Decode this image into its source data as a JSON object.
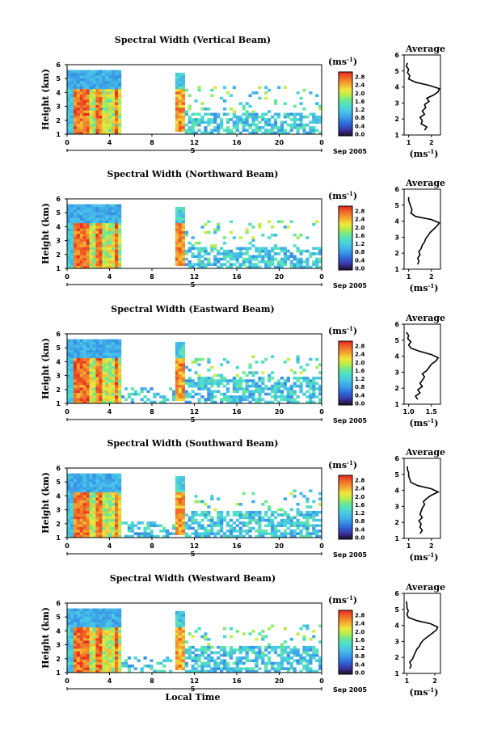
{
  "chart_data": [
    {
      "type": "heatmap",
      "title": "Spectral Width (Vertical Beam)",
      "ylabel": "Height (km)",
      "xticks": [
        "0",
        "4",
        "8",
        "12",
        "16",
        "20",
        "0"
      ],
      "day_label": "5",
      "date_label": "Sep 2005",
      "colorbar_unit": "(ms",
      "colorbar_exp": "-1",
      "colorbar_unit_end": ")",
      "colorbar_ticks": [
        "2.8",
        "2.4",
        "2.0",
        "1.6",
        "1.2",
        "0.8",
        "0.4",
        "0.0"
      ],
      "colorbar_range": [
        0.0,
        2.8
      ],
      "xlim": [
        0,
        24
      ],
      "ylim": [
        1,
        6
      ],
      "yticks": [
        "1",
        "2",
        "3",
        "4",
        "5",
        "6"
      ],
      "profile": {
        "title": "Average",
        "xlabel": "(ms",
        "xlabel_exp": "-1",
        "xlabel_end": ")",
        "xticks": [
          "1",
          "2"
        ],
        "xlim": [
          0.8,
          2.4
        ],
        "height": [
          1.3,
          1.5,
          1.7,
          1.9,
          2.1,
          2.3,
          2.5,
          2.7,
          2.9,
          3.1,
          3.3,
          3.5,
          3.7,
          3.9,
          4.1,
          4.3,
          4.5,
          4.7,
          4.9,
          5.1,
          5.3,
          5.5
        ],
        "width": [
          1.7,
          1.8,
          1.55,
          1.6,
          1.5,
          1.7,
          1.6,
          1.75,
          1.7,
          1.9,
          1.8,
          2.1,
          2.3,
          2.35,
          1.9,
          1.3,
          1.0,
          1.05,
          0.95,
          1.0,
          0.9,
          0.95
        ]
      }
    },
    {
      "type": "heatmap",
      "title": "Spectral Width (Northward Beam)",
      "ylabel": "Height (km)",
      "xticks": [
        "0",
        "4",
        "8",
        "12",
        "16",
        "20",
        "0"
      ],
      "day_label": "5",
      "date_label": "Sep 2005",
      "colorbar_unit": "(ms",
      "colorbar_exp": "-1",
      "colorbar_unit_end": ")",
      "colorbar_ticks": [
        "2.8",
        "2.4",
        "2.0",
        "1.6",
        "1.2",
        "0.8",
        "0.4",
        "0.0"
      ],
      "colorbar_range": [
        0.0,
        2.8
      ],
      "xlim": [
        0,
        24
      ],
      "ylim": [
        1,
        6
      ],
      "yticks": [
        "1",
        "2",
        "3",
        "4",
        "5",
        "6"
      ],
      "profile": {
        "title": "Average",
        "xlabel": "(ms",
        "xlabel_exp": "-1",
        "xlabel_end": ")",
        "xticks": [
          "1",
          "2"
        ],
        "xlim": [
          0.8,
          2.4
        ],
        "height": [
          1.3,
          1.5,
          1.7,
          1.9,
          2.1,
          2.3,
          2.5,
          2.7,
          2.9,
          3.1,
          3.3,
          3.5,
          3.7,
          3.9,
          4.1,
          4.3,
          4.5,
          4.7,
          4.9,
          5.1,
          5.3,
          5.5
        ],
        "width": [
          1.4,
          1.45,
          1.4,
          1.5,
          1.45,
          1.55,
          1.6,
          1.7,
          1.75,
          1.85,
          1.95,
          2.1,
          2.25,
          2.35,
          2.0,
          1.3,
          1.1,
          1.15,
          1.1,
          1.05,
          1.0,
          1.0
        ]
      }
    },
    {
      "type": "heatmap",
      "title": "Spectral Width (Eastward Beam)",
      "ylabel": "Height (km)",
      "xticks": [
        "0",
        "4",
        "8",
        "12",
        "16",
        "20",
        "0"
      ],
      "day_label": "5",
      "date_label": "Sep 2005",
      "colorbar_unit": "(ms",
      "colorbar_exp": "-1",
      "colorbar_unit_end": ")",
      "colorbar_ticks": [
        "2.8",
        "2.4",
        "2.0",
        "1.6",
        "1.2",
        "0.8",
        "0.4",
        "0.0"
      ],
      "colorbar_range": [
        0.0,
        2.8
      ],
      "xlim": [
        0,
        24
      ],
      "ylim": [
        1,
        6
      ],
      "yticks": [
        "1",
        "2",
        "3",
        "4",
        "5",
        "6"
      ],
      "profile": {
        "title": "Average",
        "xlabel": "(ms",
        "xlabel_exp": "-1",
        "xlabel_end": ")",
        "xticks": [
          "1.0",
          "1.5"
        ],
        "xlim": [
          0.9,
          1.7
        ],
        "height": [
          1.3,
          1.5,
          1.7,
          1.9,
          2.1,
          2.3,
          2.5,
          2.7,
          2.9,
          3.1,
          3.3,
          3.5,
          3.7,
          3.9,
          4.1,
          4.3,
          4.5,
          4.7,
          4.9,
          5.1,
          5.3,
          5.5
        ],
        "width": [
          1.2,
          1.15,
          1.25,
          1.2,
          1.3,
          1.25,
          1.3,
          1.35,
          1.3,
          1.4,
          1.45,
          1.5,
          1.6,
          1.65,
          1.5,
          1.25,
          1.05,
          1.0,
          1.05,
          0.98,
          1.0,
          0.95
        ]
      }
    },
    {
      "type": "heatmap",
      "title": "Spectral Width (Southward Beam)",
      "ylabel": "Height (km)",
      "xticks": [
        "0",
        "4",
        "8",
        "12",
        "16",
        "20",
        "0"
      ],
      "day_label": "5",
      "date_label": "Sep 2005",
      "colorbar_unit": "(ms",
      "colorbar_exp": "-1",
      "colorbar_unit_end": ")",
      "colorbar_ticks": [
        "2.8",
        "2.4",
        "2.0",
        "1.6",
        "1.2",
        "0.8",
        "0.4",
        "0.0"
      ],
      "colorbar_range": [
        0.0,
        2.8
      ],
      "xlim": [
        0,
        24
      ],
      "ylim": [
        1,
        6
      ],
      "yticks": [
        "1",
        "2",
        "3",
        "4",
        "5",
        "6"
      ],
      "profile": {
        "title": "Average",
        "xlabel": "(ms",
        "xlabel_exp": "-1",
        "xlabel_end": ")",
        "xticks": [
          "1",
          "2"
        ],
        "xlim": [
          0.8,
          2.4
        ],
        "height": [
          1.3,
          1.5,
          1.7,
          1.9,
          2.1,
          2.3,
          2.5,
          2.7,
          2.9,
          3.1,
          3.3,
          3.5,
          3.7,
          3.9,
          4.1,
          4.3,
          4.5,
          4.7,
          4.9,
          5.1,
          5.3,
          5.5
        ],
        "width": [
          1.5,
          1.6,
          1.5,
          1.55,
          1.45,
          1.6,
          1.5,
          1.55,
          1.6,
          1.7,
          1.65,
          1.8,
          2.0,
          2.3,
          2.0,
          1.4,
          1.1,
          1.05,
          1.0,
          1.0,
          0.95,
          0.95
        ]
      }
    },
    {
      "type": "heatmap",
      "title": "Spectral Width (Westward Beam)",
      "ylabel": "Height (km)",
      "xlabel": "Local Time",
      "xticks": [
        "0",
        "4",
        "8",
        "12",
        "16",
        "20",
        "0"
      ],
      "day_label": "5",
      "date_label": "Sep 2005",
      "colorbar_unit": "(ms",
      "colorbar_exp": "-1",
      "colorbar_unit_end": ")",
      "colorbar_ticks": [
        "2.8",
        "2.4",
        "2.0",
        "1.6",
        "1.2",
        "0.8",
        "0.4",
        "0.0"
      ],
      "colorbar_range": [
        0.0,
        2.8
      ],
      "xlim": [
        0,
        24
      ],
      "ylim": [
        1,
        6
      ],
      "yticks": [
        "1",
        "2",
        "3",
        "4",
        "5",
        "6"
      ],
      "profile": {
        "title": "Average",
        "xlabel": "(ms",
        "xlabel_exp": "-1",
        "xlabel_end": ")",
        "xticks": [
          "1",
          "2"
        ],
        "xlim": [
          0.9,
          2.2
        ],
        "height": [
          1.3,
          1.5,
          1.7,
          1.9,
          2.1,
          2.3,
          2.5,
          2.7,
          2.9,
          3.1,
          3.3,
          3.5,
          3.7,
          3.9,
          4.1,
          4.3,
          4.5,
          4.7,
          4.9,
          5.1,
          5.3,
          5.5
        ],
        "width": [
          1.1,
          1.15,
          1.1,
          1.2,
          1.25,
          1.3,
          1.35,
          1.45,
          1.5,
          1.6,
          1.75,
          1.9,
          2.05,
          2.1,
          1.85,
          1.35,
          1.05,
          1.0,
          1.05,
          1.0,
          1.0,
          0.98
        ]
      }
    }
  ]
}
